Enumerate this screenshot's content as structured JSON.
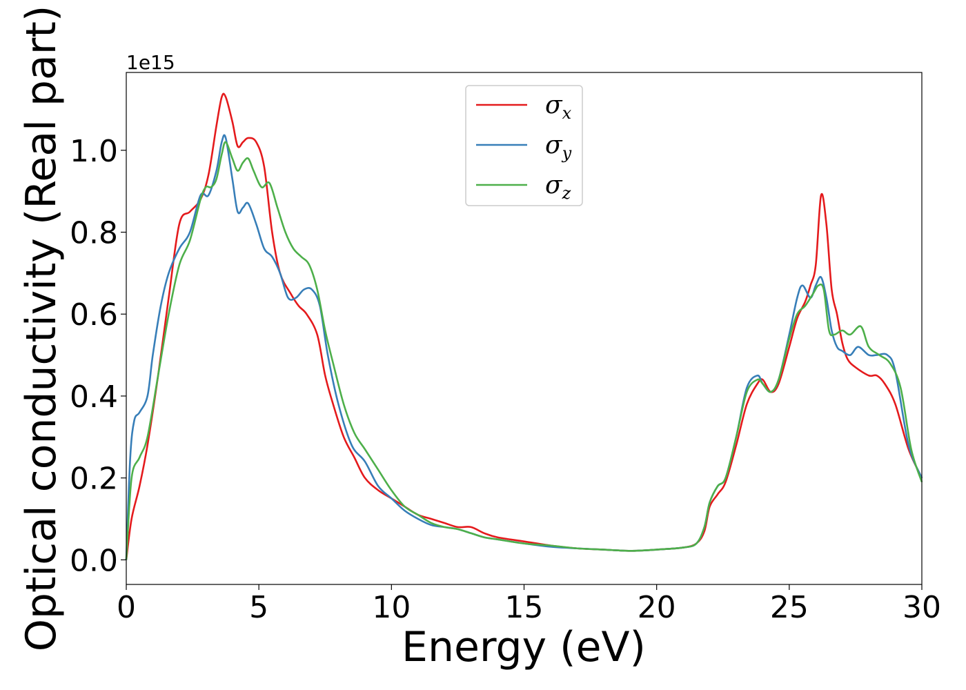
{
  "chart_data": {
    "type": "line",
    "xlabel": "Energy (eV)",
    "ylabel": "Optical conductivity (Real part)",
    "y_offset_label": "1e15",
    "xlim": [
      0,
      30
    ],
    "ylim": [
      -0.06,
      1.19
    ],
    "xticks": [
      0,
      5,
      10,
      15,
      20,
      25,
      30
    ],
    "xtick_labels": [
      "0",
      "5",
      "10",
      "15",
      "20",
      "25",
      "30"
    ],
    "yticks": [
      0.0,
      0.2,
      0.4,
      0.6,
      0.8,
      1.0
    ],
    "ytick_labels": [
      "0.0",
      "0.2",
      "0.4",
      "0.6",
      "0.8",
      "1.0"
    ],
    "grid": false,
    "legend_position": "top-center",
    "series": [
      {
        "name": "σx",
        "legend_base": "σ",
        "legend_sub": "x",
        "color": "#e41a1c",
        "x": [
          0,
          0.2,
          0.5,
          0.8,
          1.2,
          1.6,
          2.0,
          2.4,
          2.8,
          3.1,
          3.4,
          3.6,
          3.75,
          4.0,
          4.2,
          4.4,
          4.6,
          4.9,
          5.2,
          5.5,
          5.8,
          6.2,
          6.5,
          6.8,
          7.2,
          7.5,
          7.8,
          8.2,
          8.6,
          9.0,
          9.5,
          10.0,
          10.5,
          11.0,
          11.5,
          12.0,
          12.5,
          13.0,
          13.5,
          14.0,
          15.0,
          16.0,
          17.0,
          18.0,
          19.0,
          20.0,
          21.0,
          21.5,
          21.8,
          22.0,
          22.3,
          22.6,
          23.0,
          23.4,
          23.8,
          24.0,
          24.3,
          24.6,
          25.0,
          25.3,
          25.6,
          25.8,
          26.0,
          26.2,
          26.4,
          26.6,
          26.8,
          27.0,
          27.2,
          27.5,
          28.0,
          28.3,
          28.6,
          29.0,
          29.5,
          30.0
        ],
        "y": [
          0.0,
          0.1,
          0.18,
          0.28,
          0.45,
          0.64,
          0.82,
          0.85,
          0.88,
          0.94,
          1.06,
          1.13,
          1.13,
          1.07,
          1.01,
          1.02,
          1.03,
          1.02,
          0.96,
          0.8,
          0.7,
          0.65,
          0.62,
          0.6,
          0.55,
          0.45,
          0.38,
          0.3,
          0.25,
          0.2,
          0.17,
          0.15,
          0.13,
          0.11,
          0.1,
          0.09,
          0.08,
          0.08,
          0.065,
          0.055,
          0.045,
          0.035,
          0.028,
          0.025,
          0.022,
          0.025,
          0.03,
          0.04,
          0.07,
          0.13,
          0.16,
          0.19,
          0.28,
          0.38,
          0.43,
          0.44,
          0.41,
          0.43,
          0.52,
          0.59,
          0.63,
          0.67,
          0.72,
          0.89,
          0.82,
          0.66,
          0.6,
          0.53,
          0.49,
          0.47,
          0.45,
          0.45,
          0.43,
          0.38,
          0.27,
          0.2
        ]
      },
      {
        "name": "σy",
        "legend_base": "σ",
        "legend_sub": "y",
        "color": "#377eb8",
        "x": [
          0,
          0.15,
          0.3,
          0.5,
          0.8,
          1.0,
          1.3,
          1.6,
          2.0,
          2.4,
          2.8,
          3.1,
          3.4,
          3.6,
          3.75,
          4.0,
          4.2,
          4.4,
          4.6,
          4.9,
          5.2,
          5.5,
          5.8,
          6.1,
          6.4,
          6.7,
          7.0,
          7.3,
          7.6,
          8.0,
          8.5,
          9.0,
          9.5,
          10.0,
          10.5,
          11.0,
          11.5,
          12.0,
          12.5,
          13.0,
          13.5,
          14.0,
          15.0,
          16.0,
          17.0,
          18.0,
          19.0,
          20.0,
          21.0,
          21.5,
          21.8,
          22.0,
          22.3,
          22.6,
          23.0,
          23.4,
          23.8,
          24.0,
          24.3,
          24.6,
          25.0,
          25.3,
          25.5,
          25.8,
          26.0,
          26.2,
          26.4,
          26.6,
          26.8,
          27.0,
          27.3,
          27.6,
          28.0,
          28.3,
          28.7,
          29.0,
          29.5,
          30.0
        ],
        "y": [
          0.0,
          0.25,
          0.34,
          0.36,
          0.4,
          0.5,
          0.62,
          0.7,
          0.76,
          0.8,
          0.89,
          0.89,
          0.95,
          1.02,
          1.03,
          0.93,
          0.85,
          0.86,
          0.87,
          0.82,
          0.76,
          0.74,
          0.7,
          0.64,
          0.64,
          0.66,
          0.66,
          0.62,
          0.5,
          0.38,
          0.28,
          0.24,
          0.18,
          0.15,
          0.12,
          0.1,
          0.085,
          0.08,
          0.075,
          0.065,
          0.055,
          0.05,
          0.04,
          0.032,
          0.028,
          0.025,
          0.022,
          0.025,
          0.03,
          0.04,
          0.08,
          0.14,
          0.18,
          0.2,
          0.3,
          0.42,
          0.45,
          0.43,
          0.41,
          0.44,
          0.55,
          0.64,
          0.67,
          0.64,
          0.67,
          0.69,
          0.64,
          0.56,
          0.52,
          0.51,
          0.5,
          0.52,
          0.5,
          0.5,
          0.5,
          0.46,
          0.28,
          0.2
        ]
      },
      {
        "name": "σz",
        "legend_base": "σ",
        "legend_sub": "z",
        "color": "#4daf4a",
        "x": [
          0,
          0.2,
          0.5,
          0.8,
          1.2,
          1.6,
          2.0,
          2.4,
          2.8,
          3.0,
          3.2,
          3.4,
          3.6,
          3.75,
          4.0,
          4.2,
          4.4,
          4.6,
          4.8,
          5.1,
          5.4,
          5.7,
          6.0,
          6.3,
          6.6,
          6.9,
          7.2,
          7.5,
          7.8,
          8.2,
          8.6,
          9.0,
          9.5,
          10.0,
          10.5,
          11.0,
          11.5,
          12.0,
          12.5,
          13.0,
          13.5,
          14.0,
          15.0,
          16.0,
          17.0,
          18.0,
          19.0,
          20.0,
          21.0,
          21.5,
          21.8,
          22.0,
          22.3,
          22.6,
          23.0,
          23.4,
          23.8,
          24.0,
          24.3,
          24.6,
          25.0,
          25.3,
          25.6,
          25.9,
          26.1,
          26.3,
          26.5,
          26.7,
          27.0,
          27.3,
          27.7,
          28.0,
          28.4,
          28.8,
          29.2,
          29.6,
          30.0
        ],
        "y": [
          0.0,
          0.2,
          0.25,
          0.3,
          0.45,
          0.6,
          0.72,
          0.78,
          0.88,
          0.91,
          0.91,
          0.93,
          0.99,
          1.02,
          0.98,
          0.95,
          0.97,
          0.98,
          0.95,
          0.91,
          0.92,
          0.86,
          0.8,
          0.76,
          0.74,
          0.72,
          0.66,
          0.56,
          0.48,
          0.38,
          0.31,
          0.27,
          0.22,
          0.17,
          0.13,
          0.11,
          0.09,
          0.08,
          0.075,
          0.065,
          0.055,
          0.05,
          0.04,
          0.035,
          0.028,
          0.025,
          0.022,
          0.025,
          0.03,
          0.04,
          0.08,
          0.14,
          0.18,
          0.2,
          0.3,
          0.41,
          0.44,
          0.43,
          0.41,
          0.44,
          0.54,
          0.6,
          0.62,
          0.65,
          0.67,
          0.66,
          0.56,
          0.55,
          0.56,
          0.55,
          0.57,
          0.52,
          0.5,
          0.48,
          0.42,
          0.27,
          0.19
        ]
      }
    ]
  }
}
